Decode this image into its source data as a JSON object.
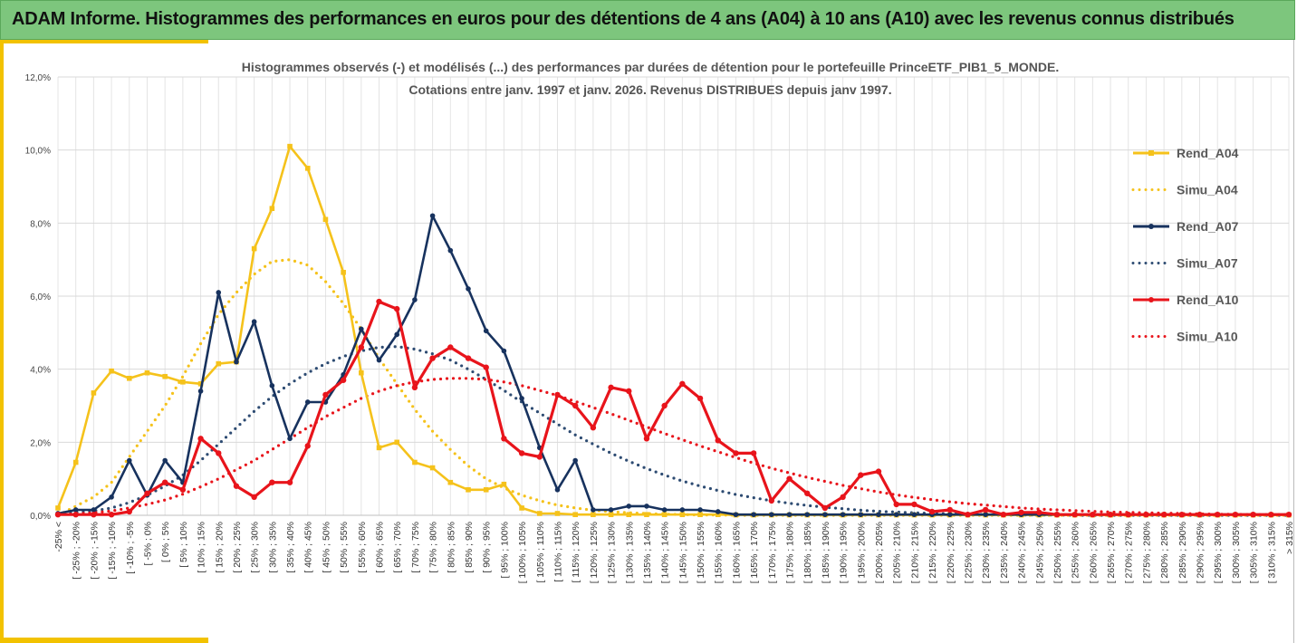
{
  "header": {
    "title": "ADAM Informe. Histogrammes des performances en euros pour des détentions de 4 ans (A04) à 10 ans (A10) avec les revenus connus distribués"
  },
  "chart_data": {
    "type": "line",
    "title_line1": "Histogrammes observés (-) et modélisés (...) des performances par durées de détention pour  le portefeuille PrinceETF_PIB1_5_MONDE.",
    "title_line2": "Cotations  entre janv. 1997 et janv. 2026. Revenus DISTRIBUES depuis janv 1997.",
    "y_ticks": [
      "0,0%",
      "2,0%",
      "4,0%",
      "6,0%",
      "8,0%",
      "10,0%",
      "12,0%"
    ],
    "ylim": [
      0,
      12
    ],
    "categories": [
      "-25% <",
      "[ -25% ; -20%",
      "[ -20% ; -15%",
      "[ -15% ; -10%",
      "[ -10% ; -5%",
      "[ -5% ; 0%",
      "[ 0% ; 5%",
      "[ 5% ; 10%",
      "[ 10% ; 15%",
      "[ 15% ; 20%",
      "[ 20% ; 25%",
      "[ 25% ; 30%",
      "[ 30% ; 35%",
      "[ 35% ; 40%",
      "[ 40% ; 45%",
      "[ 45% ; 50%",
      "[ 50% ; 55%",
      "[ 55% ; 60%",
      "[ 60% ; 65%",
      "[ 65% ; 70%",
      "[ 70% ; 75%",
      "[ 75% ; 80%",
      "[ 80% ; 85%",
      "[ 85% ; 90%",
      "[ 90% ; 95%",
      "[ 95% ; 100%",
      "[ 100% ; 105%",
      "[ 105% ; 110%",
      "[ 110% ; 115%",
      "[ 115% ; 120%",
      "[ 120% ; 125%",
      "[ 125% ; 130%",
      "[ 130% ; 135%",
      "[ 135% ; 140%",
      "[ 140% ; 145%",
      "[ 145% ; 150%",
      "[ 150% ; 155%",
      "[ 155% ; 160%",
      "[ 160% ; 165%",
      "[ 165% ; 170%",
      "[ 170% ; 175%",
      "[ 175% ; 180%",
      "[ 180% ; 185%",
      "[ 185% ; 190%",
      "[ 190% ; 195%",
      "[ 195% ; 200%",
      "[ 200% ; 205%",
      "[ 205% ; 210%",
      "[ 210% ; 215%",
      "[ 215% ; 220%",
      "[ 220% ; 225%",
      "[ 225% ; 230%",
      "[ 230% ; 235%",
      "[ 235% ; 240%",
      "[ 240% ; 245%",
      "[ 245% ; 250%",
      "[ 250% ; 255%",
      "[ 255% ; 260%",
      "[ 260% ; 265%",
      "[ 265% ; 270%",
      "[ 270% ; 275%",
      "[ 275% ; 280%",
      "[ 280% ; 285%",
      "[ 285% ; 290%",
      "[ 290% ; 295%",
      "[ 295% ; 300%",
      "[ 300% ; 305%",
      "[ 305% ; 310%",
      "[ 310% ; 315%",
      "> 315%"
    ],
    "series": [
      {
        "name": "Rend_A04",
        "color": "#f5c21b",
        "style": "solid",
        "marker": "square",
        "values": [
          0.2,
          1.45,
          3.35,
          3.95,
          3.75,
          3.9,
          3.8,
          3.65,
          3.6,
          4.15,
          4.2,
          7.3,
          8.4,
          10.1,
          9.5,
          8.1,
          6.65,
          3.9,
          1.85,
          2.0,
          1.45,
          1.3,
          0.9,
          0.7,
          0.7,
          0.85,
          0.2,
          0.05,
          0.05,
          0.02,
          0.02,
          0.02,
          0.02,
          0.02,
          0.02,
          0.02,
          0.02,
          0.02,
          0.01,
          0.01,
          0.01,
          0.01,
          0.01,
          0.01,
          0.01,
          0.01,
          0.01,
          0.01,
          0.01,
          0.01,
          0.01,
          0.01,
          0.01,
          0.01,
          0.01,
          0.01,
          0.01,
          0.01,
          0.01,
          0.01,
          0.01,
          0.01,
          0.01,
          0.01,
          0.01,
          0.01,
          0.01,
          0.01,
          0.01,
          0.01
        ]
      },
      {
        "name": "Simu_A04",
        "color": "#f5c21b",
        "style": "dotted",
        "marker": "none",
        "values": [
          0.0,
          0.25,
          0.5,
          0.9,
          1.6,
          2.3,
          3.0,
          3.8,
          4.7,
          5.5,
          6.1,
          6.6,
          6.95,
          7.0,
          6.85,
          6.4,
          5.8,
          5.1,
          4.3,
          3.6,
          2.9,
          2.3,
          1.8,
          1.35,
          1.0,
          0.75,
          0.55,
          0.4,
          0.28,
          0.2,
          0.14,
          0.1,
          0.07,
          0.05,
          0.03,
          0.02,
          0.01,
          0.01,
          0.0,
          0.0,
          0.0,
          0.0,
          0.0,
          0.0,
          0.0,
          0.0,
          0.0,
          0.0,
          0.0,
          0.0,
          0.0,
          0.0,
          0.0,
          0.0,
          0.0,
          0.0,
          0.0,
          0.0,
          0.0,
          0.0,
          0.0,
          0.0,
          0.0,
          0.0,
          0.0,
          0.0,
          0.0,
          0.0,
          0.0,
          0.0
        ]
      },
      {
        "name": "Rend_A07",
        "color": "#17325e",
        "style": "solid",
        "marker": "circle",
        "values": [
          0.05,
          0.15,
          0.15,
          0.5,
          1.5,
          0.55,
          1.5,
          0.9,
          3.4,
          6.1,
          4.2,
          5.3,
          3.55,
          2.1,
          3.1,
          3.1,
          3.85,
          5.1,
          4.25,
          4.95,
          5.9,
          8.2,
          7.25,
          6.2,
          5.05,
          4.5,
          3.2,
          1.85,
          0.7,
          1.5,
          0.15,
          0.15,
          0.25,
          0.25,
          0.15,
          0.15,
          0.15,
          0.1,
          0.02,
          0.02,
          0.02,
          0.02,
          0.02,
          0.02,
          0.02,
          0.02,
          0.02,
          0.02,
          0.02,
          0.02,
          0.02,
          0.02,
          0.02,
          0.02,
          0.02,
          0.02,
          0.02,
          0.02,
          0.02,
          0.02,
          0.02,
          0.02,
          0.02,
          0.02,
          0.02,
          0.02,
          0.02,
          0.02,
          0.02,
          0.02
        ]
      },
      {
        "name": "Simu_A07",
        "color": "#2d4b72",
        "style": "dotted",
        "marker": "none",
        "values": [
          0.05,
          0.08,
          0.12,
          0.2,
          0.35,
          0.55,
          0.8,
          1.1,
          1.5,
          1.95,
          2.4,
          2.85,
          3.25,
          3.6,
          3.9,
          4.15,
          4.35,
          4.5,
          4.6,
          4.62,
          4.55,
          4.42,
          4.25,
          4.0,
          3.72,
          3.42,
          3.1,
          2.8,
          2.5,
          2.2,
          1.95,
          1.7,
          1.48,
          1.28,
          1.1,
          0.94,
          0.8,
          0.68,
          0.57,
          0.48,
          0.4,
          0.33,
          0.27,
          0.22,
          0.18,
          0.14,
          0.11,
          0.09,
          0.07,
          0.05,
          0.04,
          0.03,
          0.02,
          0.02,
          0.01,
          0.01,
          0.01,
          0.0,
          0.0,
          0.0,
          0.0,
          0.0,
          0.0,
          0.0,
          0.0,
          0.0,
          0.0,
          0.0,
          0.0,
          0.0
        ]
      },
      {
        "name": "Rend_A10",
        "color": "#e8141b",
        "style": "solid",
        "marker": "circle",
        "values": [
          0.02,
          0.02,
          0.02,
          0.02,
          0.1,
          0.6,
          0.9,
          0.7,
          2.1,
          1.7,
          0.8,
          0.5,
          0.9,
          0.9,
          1.9,
          3.3,
          3.7,
          4.6,
          5.85,
          5.65,
          3.5,
          4.3,
          4.6,
          4.3,
          4.05,
          2.1,
          1.7,
          1.6,
          3.3,
          3.0,
          2.4,
          3.5,
          3.4,
          2.1,
          3.0,
          3.6,
          3.2,
          2.05,
          1.7,
          1.7,
          0.4,
          1.0,
          0.6,
          0.2,
          0.5,
          1.1,
          1.2,
          0.3,
          0.3,
          0.1,
          0.15,
          0.02,
          0.15,
          0.02,
          0.08,
          0.08,
          0.02,
          0.02,
          0.02,
          0.02,
          0.02,
          0.02,
          0.02,
          0.02,
          0.02,
          0.02,
          0.02,
          0.02,
          0.02,
          0.02
        ]
      },
      {
        "name": "Simu_A10",
        "color": "#e8141b",
        "style": "dotted",
        "marker": "none",
        "values": [
          0.02,
          0.04,
          0.07,
          0.12,
          0.2,
          0.3,
          0.42,
          0.58,
          0.78,
          1.0,
          1.25,
          1.5,
          1.8,
          2.1,
          2.4,
          2.7,
          2.95,
          3.2,
          3.4,
          3.55,
          3.65,
          3.72,
          3.75,
          3.75,
          3.72,
          3.65,
          3.55,
          3.42,
          3.28,
          3.12,
          2.95,
          2.78,
          2.6,
          2.42,
          2.24,
          2.07,
          1.9,
          1.74,
          1.58,
          1.43,
          1.29,
          1.16,
          1.04,
          0.93,
          0.82,
          0.73,
          0.64,
          0.56,
          0.49,
          0.43,
          0.37,
          0.32,
          0.28,
          0.24,
          0.2,
          0.17,
          0.15,
          0.13,
          0.11,
          0.09,
          0.08,
          0.07,
          0.06,
          0.05,
          0.04,
          0.03,
          0.03,
          0.02,
          0.02,
          0.02
        ]
      }
    ]
  }
}
